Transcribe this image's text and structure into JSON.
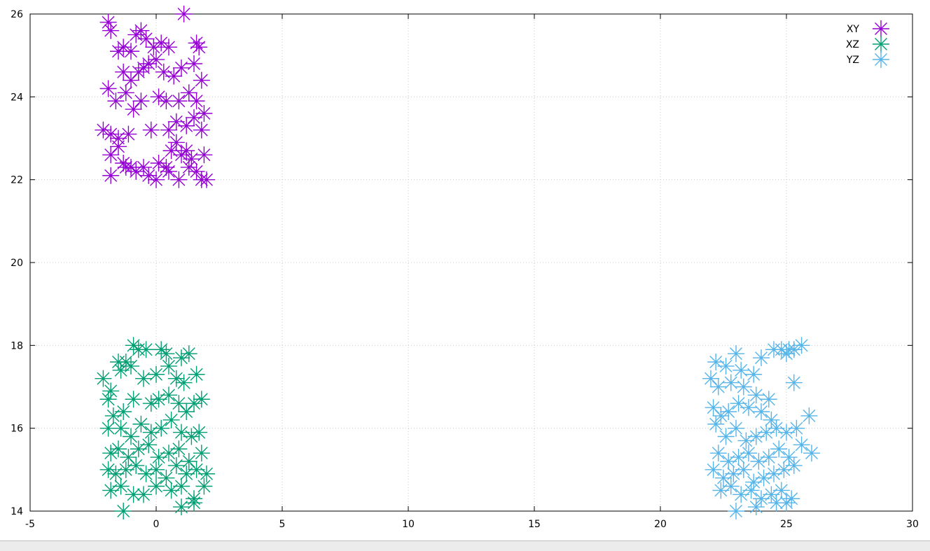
{
  "chart_data": {
    "type": "scatter",
    "title": "",
    "xlabel": "",
    "ylabel": "",
    "xlim": [
      -5,
      30
    ],
    "ylim": [
      14,
      26
    ],
    "xticks": [
      -5,
      0,
      5,
      10,
      15,
      20,
      25,
      30
    ],
    "yticks": [
      14,
      16,
      18,
      20,
      22,
      24,
      26
    ],
    "grid": true,
    "legend_position": "top-right",
    "marker": "asterisk",
    "series": [
      {
        "name": "XY",
        "color": "#9400d3",
        "points": [
          [
            -1.9,
            25.8
          ],
          [
            -1.8,
            25.6
          ],
          [
            -1.5,
            25.1
          ],
          [
            -1.3,
            25.2
          ],
          [
            -1.0,
            25.1
          ],
          [
            -0.8,
            25.5
          ],
          [
            -0.6,
            25.6
          ],
          [
            -0.4,
            25.4
          ],
          [
            -0.1,
            25.2
          ],
          [
            0.2,
            25.3
          ],
          [
            0.5,
            25.2
          ],
          [
            1.1,
            26.0
          ],
          [
            1.6,
            25.3
          ],
          [
            1.7,
            25.2
          ],
          [
            -1.3,
            24.6
          ],
          [
            -1.0,
            24.4
          ],
          [
            -0.7,
            24.6
          ],
          [
            -0.5,
            24.7
          ],
          [
            -0.3,
            24.8
          ],
          [
            0.0,
            24.9
          ],
          [
            0.3,
            24.6
          ],
          [
            0.7,
            24.5
          ],
          [
            1.0,
            24.7
          ],
          [
            1.5,
            24.8
          ],
          [
            1.8,
            24.4
          ],
          [
            -1.9,
            24.2
          ],
          [
            -1.6,
            23.9
          ],
          [
            -1.2,
            24.1
          ],
          [
            -0.9,
            23.7
          ],
          [
            -0.6,
            23.9
          ],
          [
            0.1,
            24.0
          ],
          [
            0.4,
            23.9
          ],
          [
            0.9,
            23.9
          ],
          [
            1.3,
            24.1
          ],
          [
            1.6,
            23.9
          ],
          [
            1.9,
            23.6
          ],
          [
            -2.1,
            23.2
          ],
          [
            -1.8,
            23.1
          ],
          [
            -1.5,
            23.0
          ],
          [
            -1.1,
            23.1
          ],
          [
            -0.2,
            23.2
          ],
          [
            0.5,
            23.2
          ],
          [
            0.8,
            23.4
          ],
          [
            1.2,
            23.3
          ],
          [
            1.5,
            23.5
          ],
          [
            1.8,
            23.2
          ],
          [
            -1.8,
            22.6
          ],
          [
            -1.5,
            22.8
          ],
          [
            -1.3,
            22.4
          ],
          [
            -1.0,
            22.3
          ],
          [
            -0.5,
            22.3
          ],
          [
            -0.3,
            22.1
          ],
          [
            0.1,
            22.4
          ],
          [
            0.4,
            22.3
          ],
          [
            0.6,
            22.7
          ],
          [
            0.8,
            22.9
          ],
          [
            1.0,
            22.6
          ],
          [
            1.2,
            22.7
          ],
          [
            1.4,
            22.5
          ],
          [
            1.6,
            22.2
          ],
          [
            1.9,
            22.6
          ],
          [
            -1.8,
            22.1
          ],
          [
            -1.2,
            22.3
          ],
          [
            -0.8,
            22.2
          ],
          [
            0.0,
            22.0
          ],
          [
            0.5,
            22.2
          ],
          [
            0.9,
            22.0
          ],
          [
            1.3,
            22.3
          ],
          [
            1.8,
            22.0
          ],
          [
            2.0,
            22.0
          ]
        ]
      },
      {
        "name": "XZ",
        "color": "#009e73",
        "points": [
          [
            -0.9,
            18.0
          ],
          [
            -0.7,
            17.9
          ],
          [
            -0.4,
            17.9
          ],
          [
            0.2,
            17.9
          ],
          [
            0.4,
            17.8
          ],
          [
            1.0,
            17.7
          ],
          [
            1.3,
            17.8
          ],
          [
            -1.5,
            17.6
          ],
          [
            -1.2,
            17.6
          ],
          [
            -2.1,
            17.2
          ],
          [
            -1.8,
            16.9
          ],
          [
            -1.4,
            17.4
          ],
          [
            -1.0,
            17.5
          ],
          [
            -0.5,
            17.2
          ],
          [
            0.0,
            17.3
          ],
          [
            0.5,
            17.5
          ],
          [
            0.8,
            17.2
          ],
          [
            1.1,
            17.1
          ],
          [
            1.6,
            17.3
          ],
          [
            -1.9,
            16.7
          ],
          [
            -1.7,
            16.3
          ],
          [
            -1.3,
            16.4
          ],
          [
            -0.9,
            16.7
          ],
          [
            -0.2,
            16.6
          ],
          [
            0.1,
            16.7
          ],
          [
            0.5,
            16.8
          ],
          [
            0.9,
            16.6
          ],
          [
            1.2,
            16.4
          ],
          [
            1.5,
            16.6
          ],
          [
            1.8,
            16.7
          ],
          [
            -1.9,
            16.0
          ],
          [
            -1.4,
            16.0
          ],
          [
            -1.0,
            15.8
          ],
          [
            -0.6,
            16.1
          ],
          [
            -0.2,
            15.9
          ],
          [
            0.2,
            16.0
          ],
          [
            0.6,
            16.2
          ],
          [
            1.0,
            15.9
          ],
          [
            1.4,
            15.8
          ],
          [
            1.7,
            15.9
          ],
          [
            -1.8,
            15.4
          ],
          [
            -1.5,
            15.5
          ],
          [
            -1.1,
            15.3
          ],
          [
            -0.7,
            15.5
          ],
          [
            -0.3,
            15.6
          ],
          [
            0.1,
            15.3
          ],
          [
            0.5,
            15.4
          ],
          [
            0.9,
            15.5
          ],
          [
            1.3,
            15.2
          ],
          [
            1.8,
            15.4
          ],
          [
            -1.9,
            15.0
          ],
          [
            -1.6,
            14.9
          ],
          [
            -1.2,
            15.0
          ],
          [
            -0.8,
            15.1
          ],
          [
            -0.4,
            14.9
          ],
          [
            0.0,
            15.0
          ],
          [
            0.4,
            14.8
          ],
          [
            0.8,
            15.1
          ],
          [
            1.2,
            14.9
          ],
          [
            1.6,
            15.0
          ],
          [
            2.0,
            14.9
          ],
          [
            -1.8,
            14.5
          ],
          [
            -1.4,
            14.6
          ],
          [
            -0.9,
            14.4
          ],
          [
            -0.5,
            14.4
          ],
          [
            0.0,
            14.6
          ],
          [
            0.6,
            14.5
          ],
          [
            1.0,
            14.6
          ],
          [
            1.5,
            14.3
          ],
          [
            1.9,
            14.6
          ],
          [
            -1.3,
            14.0
          ],
          [
            1.0,
            14.1
          ],
          [
            1.5,
            14.2
          ]
        ]
      },
      {
        "name": "YZ",
        "color": "#56b4e9",
        "points": [
          [
            23.0,
            17.8
          ],
          [
            24.5,
            17.9
          ],
          [
            24.8,
            17.9
          ],
          [
            25.1,
            17.9
          ],
          [
            25.3,
            17.9
          ],
          [
            25.6,
            18.0
          ],
          [
            25.0,
            17.8
          ],
          [
            22.2,
            17.6
          ],
          [
            22.6,
            17.5
          ],
          [
            23.2,
            17.4
          ],
          [
            23.7,
            17.3
          ],
          [
            24.0,
            17.7
          ],
          [
            22.0,
            17.2
          ],
          [
            22.3,
            17.0
          ],
          [
            22.8,
            17.1
          ],
          [
            23.3,
            17.0
          ],
          [
            23.8,
            16.8
          ],
          [
            24.3,
            16.7
          ],
          [
            25.3,
            17.1
          ],
          [
            22.1,
            16.5
          ],
          [
            22.4,
            16.3
          ],
          [
            22.7,
            16.4
          ],
          [
            23.1,
            16.6
          ],
          [
            23.5,
            16.5
          ],
          [
            24.0,
            16.4
          ],
          [
            24.4,
            16.2
          ],
          [
            22.2,
            16.1
          ],
          [
            22.6,
            15.8
          ],
          [
            23.0,
            16.0
          ],
          [
            23.4,
            15.7
          ],
          [
            23.8,
            15.8
          ],
          [
            24.2,
            15.9
          ],
          [
            24.6,
            16.0
          ],
          [
            25.0,
            15.9
          ],
          [
            25.4,
            16.0
          ],
          [
            25.9,
            16.3
          ],
          [
            22.3,
            15.4
          ],
          [
            22.7,
            15.2
          ],
          [
            23.1,
            15.3
          ],
          [
            23.5,
            15.4
          ],
          [
            23.9,
            15.2
          ],
          [
            24.3,
            15.3
          ],
          [
            24.7,
            15.5
          ],
          [
            25.1,
            15.3
          ],
          [
            25.6,
            15.6
          ],
          [
            26.0,
            15.4
          ],
          [
            22.1,
            15.0
          ],
          [
            22.5,
            14.8
          ],
          [
            22.9,
            14.9
          ],
          [
            23.3,
            15.0
          ],
          [
            23.7,
            14.7
          ],
          [
            24.1,
            14.8
          ],
          [
            24.5,
            14.9
          ],
          [
            24.9,
            15.0
          ],
          [
            25.3,
            15.1
          ],
          [
            22.4,
            14.5
          ],
          [
            22.8,
            14.6
          ],
          [
            23.2,
            14.4
          ],
          [
            23.6,
            14.5
          ],
          [
            24.0,
            14.3
          ],
          [
            24.4,
            14.4
          ],
          [
            24.8,
            14.5
          ],
          [
            25.2,
            14.3
          ],
          [
            23.0,
            14.0
          ],
          [
            23.8,
            14.1
          ],
          [
            24.6,
            14.2
          ],
          [
            25.0,
            14.2
          ]
        ]
      }
    ]
  }
}
